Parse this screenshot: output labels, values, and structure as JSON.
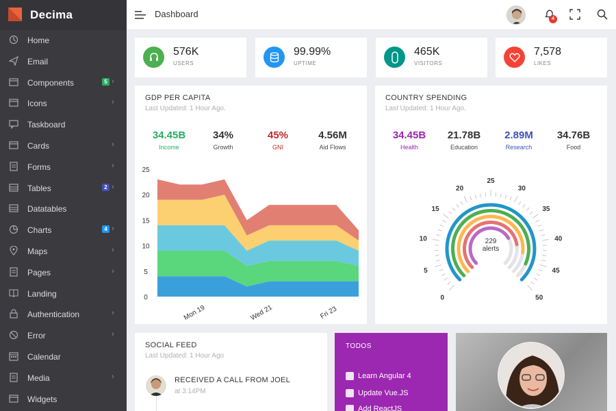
{
  "app": {
    "name": "Decima"
  },
  "sidebar": {
    "items": [
      {
        "label": "Home",
        "icon": "home-icon"
      },
      {
        "label": "Email",
        "icon": "send-icon"
      },
      {
        "label": "Components",
        "icon": "window-icon",
        "badge": "5",
        "badge_color": "#27ae60",
        "chevron": "›"
      },
      {
        "label": "Icons",
        "icon": "window-icon",
        "chevron": "›"
      },
      {
        "label": "Taskboard",
        "icon": "chat-icon"
      },
      {
        "label": "Cards",
        "icon": "window-icon",
        "chevron": "›"
      },
      {
        "label": "Forms",
        "icon": "document-icon",
        "chevron": "›"
      },
      {
        "label": "Tables",
        "icon": "table-icon",
        "badge": "2",
        "badge_color": "#3f51b5",
        "chevron": "›"
      },
      {
        "label": "Datatables",
        "icon": "table-icon"
      },
      {
        "label": "Charts",
        "icon": "pie-chart-icon",
        "badge": "4",
        "badge_color": "#2196f3",
        "chevron": "›"
      },
      {
        "label": "Maps",
        "icon": "map-pin-icon",
        "chevron": "›"
      },
      {
        "label": "Pages",
        "icon": "document-icon",
        "chevron": "›"
      },
      {
        "label": "Landing",
        "icon": "book-icon"
      },
      {
        "label": "Authentication",
        "icon": "lock-icon",
        "chevron": "›"
      },
      {
        "label": "Error",
        "icon": "ban-icon",
        "chevron": "›"
      },
      {
        "label": "Calendar",
        "icon": "calendar-icon"
      },
      {
        "label": "Media",
        "icon": "document-icon",
        "chevron": "›"
      },
      {
        "label": "Widgets",
        "icon": "window-icon"
      }
    ]
  },
  "header": {
    "title": "Dashboard",
    "notifications": "4"
  },
  "stats": [
    {
      "value": "576K",
      "label": "USERS",
      "color": "#4caf50",
      "icon": "headset-icon"
    },
    {
      "value": "99.99%",
      "label": "UPTIME",
      "color": "#2196f3",
      "icon": "database-icon"
    },
    {
      "value": "465K",
      "label": "VISITORS",
      "color": "#009688",
      "icon": "capsule-icon"
    },
    {
      "value": "7,578",
      "label": "LIKES",
      "color": "#f44336",
      "icon": "heart-icon"
    }
  ],
  "gdp": {
    "title": "GDP PER CAPITA",
    "subtitle": "Last Updated: 1 Hour Ago.",
    "kpis": [
      {
        "value": "34.45B",
        "label": "Income",
        "color": "#27ae60",
        "label_color": "#27ae60"
      },
      {
        "value": "34%",
        "label": "Growth",
        "color": "#222",
        "label_color": "#333"
      },
      {
        "value": "45%",
        "label": "GNI",
        "color": "#c62828",
        "label_color": "#c62828"
      },
      {
        "value": "4.56M",
        "label": "Aid Flows",
        "color": "#222",
        "label_color": "#333"
      }
    ]
  },
  "spending": {
    "title": "COUNTRY SPENDING",
    "subtitle": "Last Updated: 1 Hour Ago.",
    "kpis": [
      {
        "value": "34.45B",
        "label": "Health",
        "color": "#9c27b0",
        "label_color": "#9c27b0"
      },
      {
        "value": "21.78B",
        "label": "Education",
        "color": "#222",
        "label_color": "#333"
      },
      {
        "value": "2.89M",
        "label": "Research",
        "color": "#3f51b5",
        "label_color": "#3f51b5"
      },
      {
        "value": "34.76B",
        "label": "Food",
        "color": "#222",
        "label_color": "#333"
      }
    ],
    "gauge_center": {
      "value": "229",
      "label": "alerts"
    }
  },
  "social": {
    "title": "SOCIAL FEED",
    "subtitle": "Last Updated: 1 Hour Ago",
    "items": [
      {
        "text": "RECEIVED A CALL FROM JOEL",
        "time": "at 3:14PM"
      }
    ]
  },
  "todos": {
    "title": "TODOS",
    "items": [
      "Learn Angular 4",
      "Update Vue.JS",
      "Add ReactJS"
    ]
  },
  "chart_data": [
    {
      "type": "area",
      "stacked": true,
      "x": [
        "",
        "",
        "Mon 19",
        "",
        "",
        "Wed 21",
        "",
        "",
        "Fri 23",
        ""
      ],
      "ylim": [
        0,
        25
      ],
      "yticks": [
        0,
        5,
        10,
        15,
        20,
        25
      ],
      "grid": false,
      "series": [
        {
          "color": "#3aa0dc",
          "values": [
            4,
            4,
            4,
            4,
            2,
            3,
            3,
            3,
            3,
            3
          ]
        },
        {
          "color": "#5ad67d",
          "values": [
            5,
            5,
            5,
            5,
            4,
            4,
            4,
            4,
            4,
            3
          ]
        },
        {
          "color": "#6ac9df",
          "values": [
            5,
            5,
            5,
            5,
            3,
            4,
            4,
            4,
            4,
            3
          ]
        },
        {
          "color": "#fccf70",
          "values": [
            5,
            5,
            5,
            6,
            3,
            3,
            3,
            3,
            3,
            2
          ]
        },
        {
          "color": "#e27f73",
          "values": [
            4,
            3,
            3,
            3,
            3,
            4,
            4,
            4,
            4,
            2
          ]
        }
      ]
    },
    {
      "type": "gauge",
      "ticks": [
        0,
        5,
        10,
        15,
        20,
        25,
        30,
        35,
        40,
        45,
        50
      ],
      "range": [
        0,
        50
      ],
      "series": [
        {
          "color": "#2196c9",
          "value": 50
        },
        {
          "color": "#4caf50",
          "value": 46
        },
        {
          "color": "#ffb74d",
          "value": 43
        },
        {
          "color": "#e57373",
          "value": 40
        },
        {
          "color": "#ba68c8",
          "value": 36
        }
      ]
    }
  ]
}
